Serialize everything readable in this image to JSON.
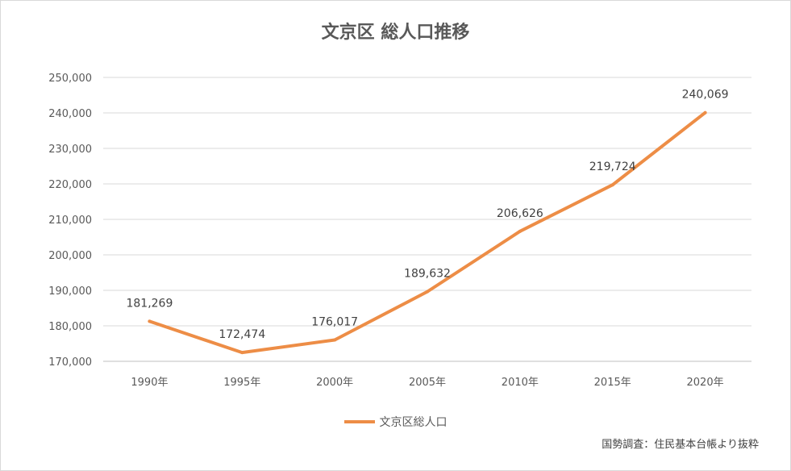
{
  "chart_data": {
    "type": "line",
    "title": "文京区 総人口推移",
    "categories": [
      "1990年",
      "1995年",
      "2000年",
      "2005年",
      "2010年",
      "2015年",
      "2020年"
    ],
    "series": [
      {
        "name": "文京区総人口",
        "values": [
          181269,
          172474,
          176017,
          189632,
          206626,
          219724,
          240069
        ]
      }
    ],
    "data_labels": [
      "181,269",
      "172,474",
      "176,017",
      "189,632",
      "206,626",
      "219,724",
      "240,069"
    ],
    "y_ticks": [
      "170,000",
      "180,000",
      "190,000",
      "200,000",
      "210,000",
      "220,000",
      "230,000",
      "240,000",
      "250,000"
    ],
    "ylim": [
      170000,
      250000
    ],
    "y_tick_step": 10000,
    "grid": true,
    "legend_position": "bottom",
    "line_color": "#ed8d46"
  },
  "source_note": "国勢調査：住民基本台帳より抜粋"
}
